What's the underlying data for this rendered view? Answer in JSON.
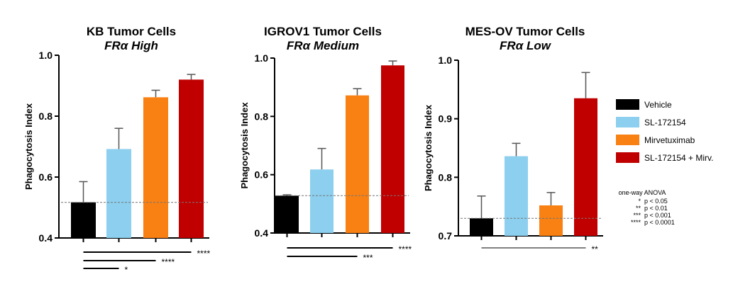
{
  "colors": {
    "Vehicle": "#000000",
    "SL-172154": "#8ccfee",
    "Mirvetuximab": "#f98012",
    "SL-172154 + Mirv.": "#c00000"
  },
  "legend": [
    "Vehicle",
    "SL-172154",
    "Mirvetuximab",
    "SL-172154 + Mirv."
  ],
  "anova": {
    "title": "one-way ANOVA",
    "rows": [
      [
        "*",
        "p < 0.05"
      ],
      [
        "**",
        "p < 0.01"
      ],
      [
        "***",
        "p < 0.001"
      ],
      [
        "****",
        "p < 0.0001"
      ]
    ]
  },
  "chart_data": [
    {
      "type": "bar",
      "title": "KB Tumor Cells",
      "subtitle": "FRα High",
      "ylabel": "Phagocytosis Index",
      "ylim": [
        0.4,
        1.0
      ],
      "yticks": [
        "0.4",
        "0.6",
        "0.8",
        "1.0"
      ],
      "categories": [
        "Vehicle",
        "SL-172154",
        "Mirvetuximab",
        "SL-172154 + Mirv."
      ],
      "values": [
        0.517,
        0.692,
        0.862,
        0.92
      ],
      "error": [
        0.068,
        0.068,
        0.023,
        0.017
      ],
      "reference_line": 0.517,
      "significance": [
        {
          "from": 0,
          "to": 3,
          "label": "****"
        },
        {
          "from": 0,
          "to": 2,
          "label": "****"
        },
        {
          "from": 0,
          "to": 1,
          "label": "*"
        }
      ]
    },
    {
      "type": "bar",
      "title": "IGROV1 Tumor Cells",
      "subtitle": "FRα Medium",
      "ylabel": "Phagocytosis Index",
      "ylim": [
        0.4,
        1.0
      ],
      "yticks": [
        "0.4",
        "0.6",
        "0.8",
        "1.0"
      ],
      "categories": [
        "Vehicle",
        "SL-172154",
        "Mirvetuximab",
        "SL-172154 + Mirv."
      ],
      "values": [
        0.528,
        0.618,
        0.872,
        0.975
      ],
      "error": [
        0.003,
        0.072,
        0.023,
        0.015
      ],
      "reference_line": 0.528,
      "significance": [
        {
          "from": 0,
          "to": 3,
          "label": "****"
        },
        {
          "from": 0,
          "to": 2,
          "label": "***"
        }
      ]
    },
    {
      "type": "bar",
      "title": "MES-OV Tumor Cells",
      "subtitle": "FRα Low",
      "ylabel": "Phagocytosis Index",
      "ylim": [
        0.7,
        1.0
      ],
      "yticks": [
        "0.7",
        "0.8",
        "0.9",
        "1.0"
      ],
      "categories": [
        "Vehicle",
        "SL-172154",
        "Mirvetuximab",
        "SL-172154 + Mirv."
      ],
      "values": [
        0.73,
        0.836,
        0.752,
        0.935
      ],
      "error": [
        0.038,
        0.022,
        0.022,
        0.044
      ],
      "reference_line": 0.73,
      "significance": [
        {
          "from": 0,
          "to": 3,
          "label": "**",
          "thin": true
        }
      ]
    }
  ]
}
